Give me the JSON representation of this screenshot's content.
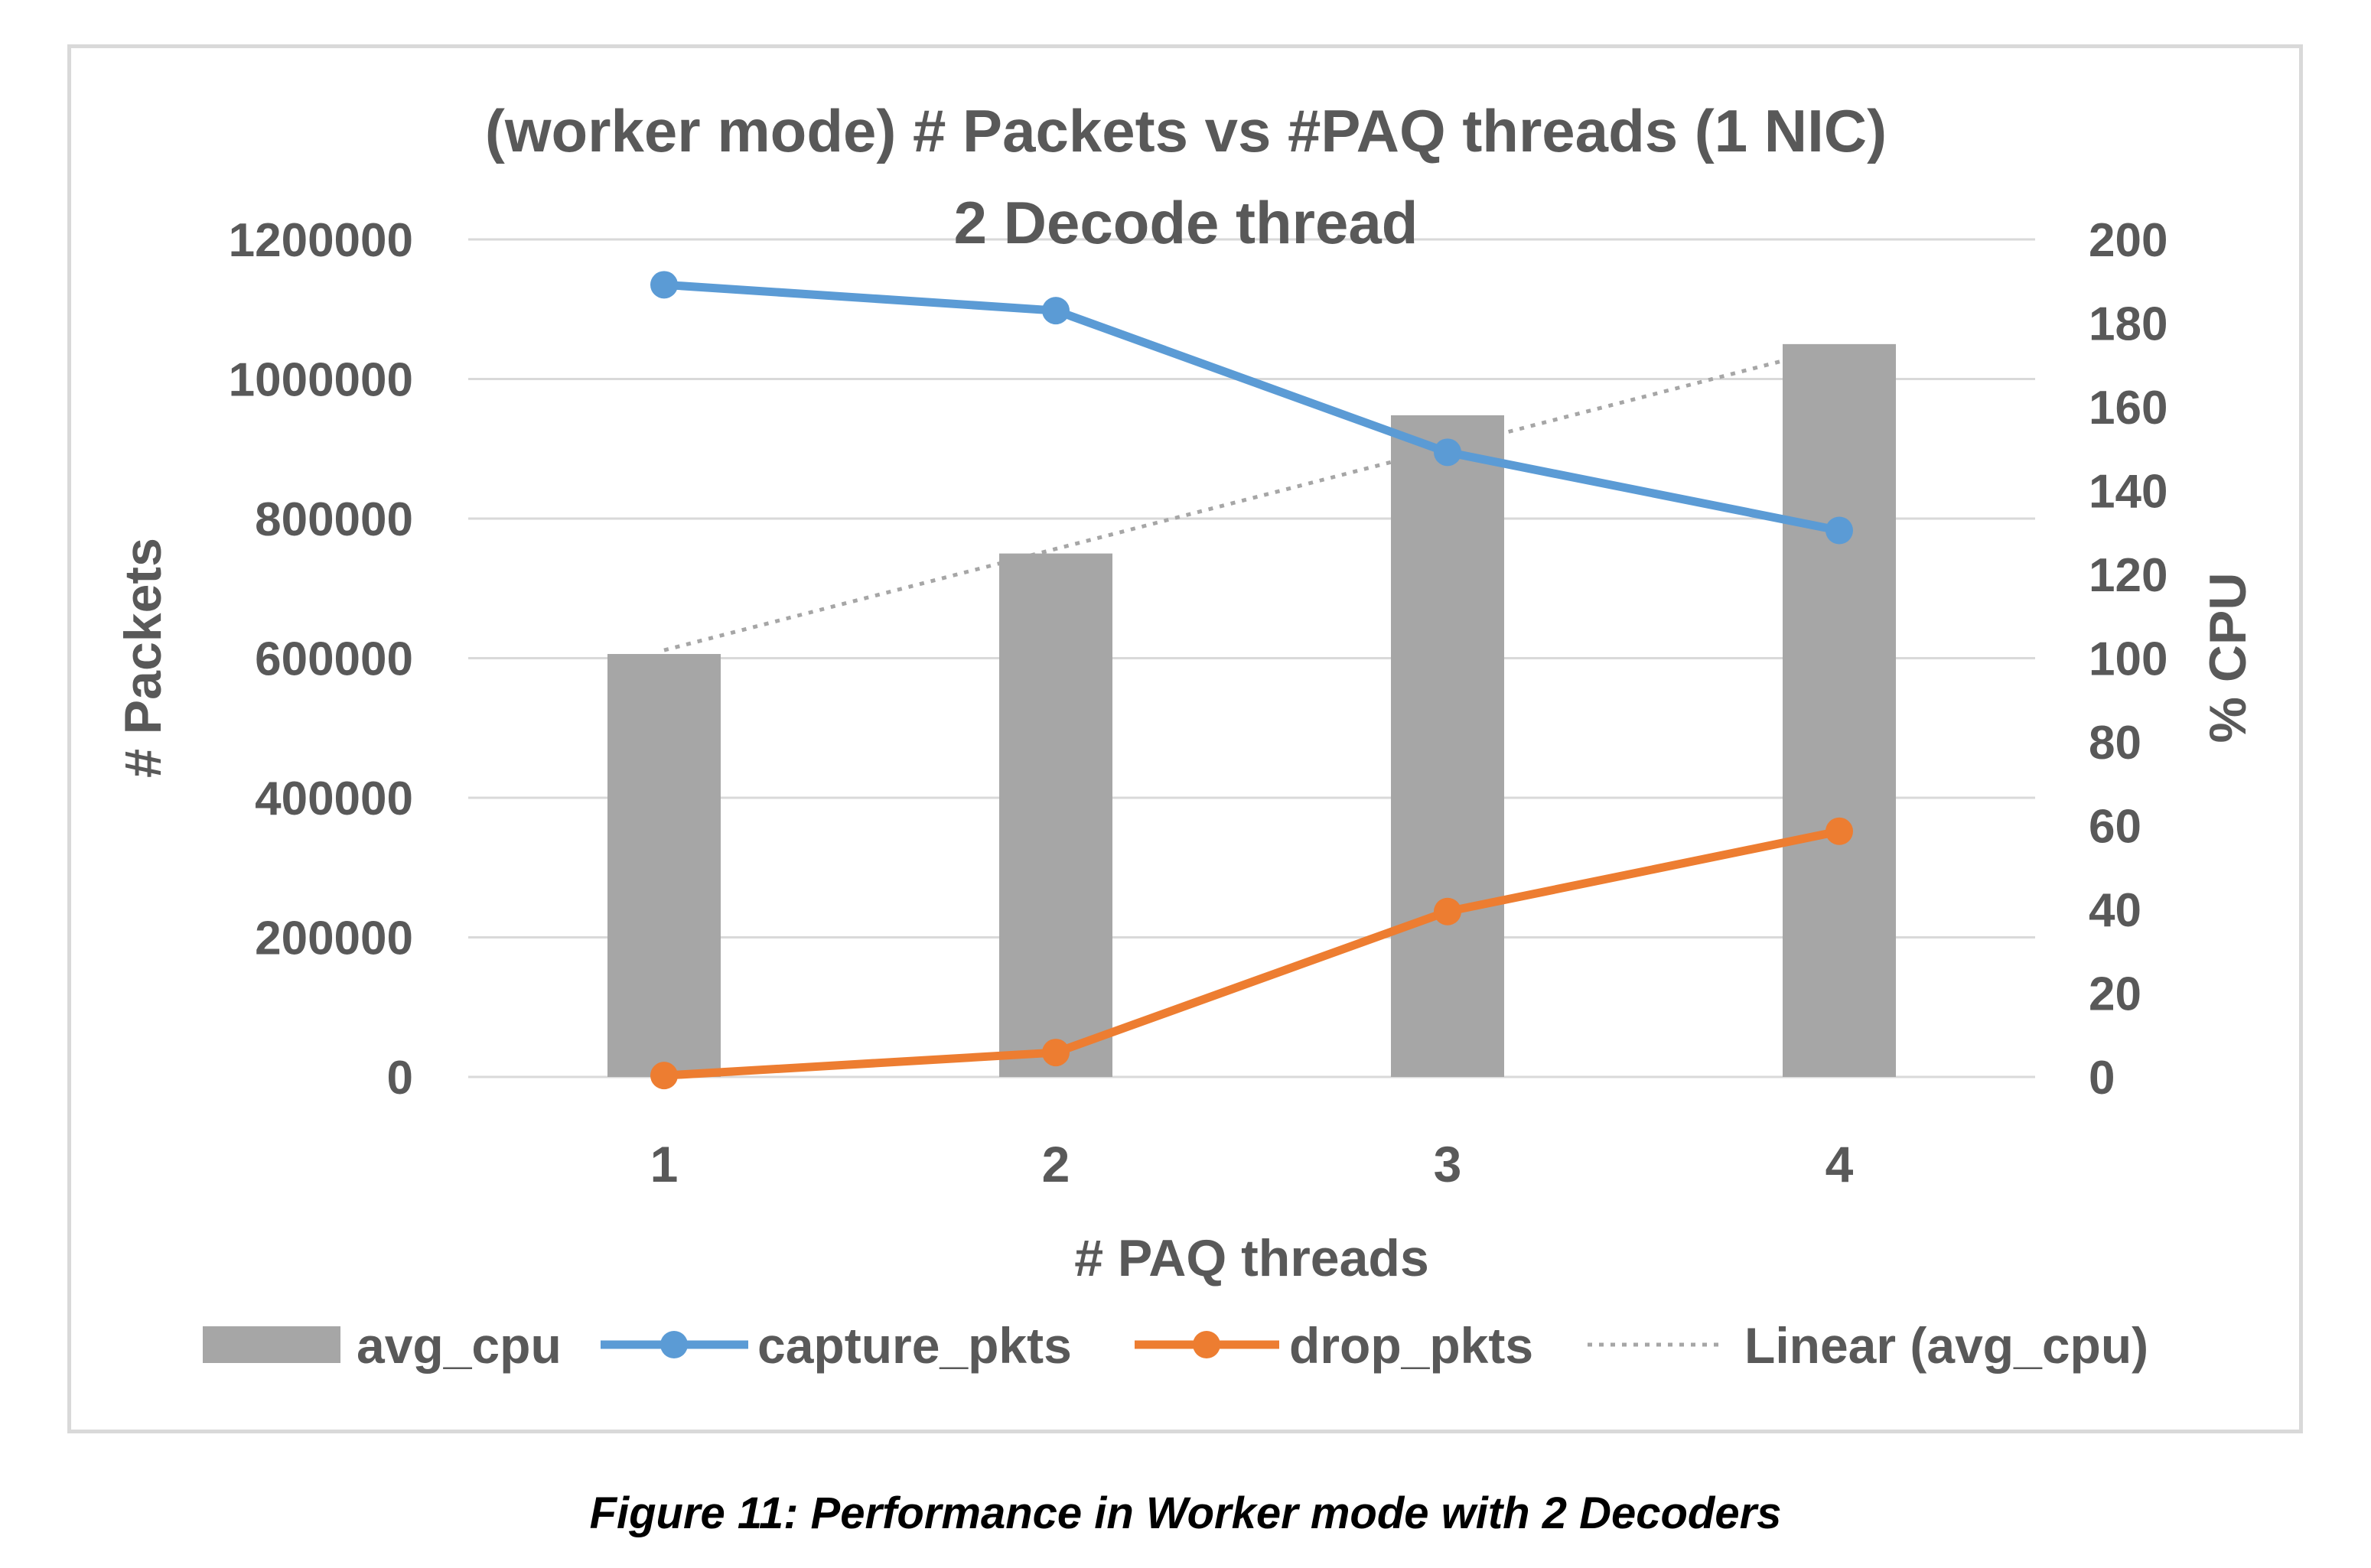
{
  "chart_data": {
    "type": "bar",
    "title": "(worker mode) # Packets vs #PAQ threads  (1 NIC)",
    "subtitle": "2 Decode thread",
    "xlabel": "# PAQ threads",
    "ylabel": "# Packets",
    "y2label": "% CPU",
    "categories": [
      "1",
      "2",
      "3",
      "4"
    ],
    "ylim": [
      0,
      1200000
    ],
    "y_ticks": [
      "0",
      "200000",
      "400000",
      "600000",
      "800000",
      "1000000",
      "1200000"
    ],
    "y2lim": [
      0,
      200
    ],
    "y2_ticks": [
      "0",
      "20",
      "40",
      "60",
      "80",
      "100",
      "120",
      "140",
      "160",
      "180",
      "200"
    ],
    "grid": true,
    "legend_position": "bottom",
    "series": [
      {
        "name": "avg_cpu",
        "type": "bar",
        "axis": "y2",
        "color": "#a6a6a6",
        "values": [
          101,
          125,
          158,
          175
        ]
      },
      {
        "name": "capture_pkts",
        "type": "line",
        "axis": "y",
        "color": "#5b9bd5",
        "values": [
          1135000,
          1098000,
          895000,
          783000
        ]
      },
      {
        "name": "drop_pkts",
        "type": "line",
        "axis": "y",
        "color": "#ed7d31",
        "values": [
          2000,
          35000,
          237000,
          352000
        ]
      },
      {
        "name": "Linear (avg_cpu)",
        "type": "trendline",
        "axis": "y2",
        "color": "#a6a6a6",
        "values": [
          101.9,
          126.1,
          150.3,
          174.5
        ]
      }
    ]
  },
  "caption": "Figure 11:  Performance in Worker mode with 2 Decoders"
}
